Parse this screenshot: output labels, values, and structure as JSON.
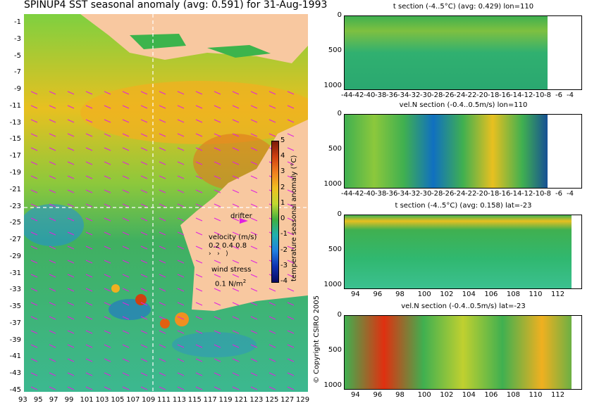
{
  "map": {
    "title": "SPINUP4 SST seasonal anomaly (avg: 0.591) for 31-Aug-1993",
    "lat_labels": [
      "-1",
      "-3",
      "-5",
      "-7",
      "-9",
      "-11",
      "-13",
      "-15",
      "-17",
      "-19",
      "-21",
      "-23",
      "-25",
      "-27",
      "-29",
      "-31",
      "-33",
      "-35",
      "-37",
      "-39",
      "-41",
      "-43",
      "-45"
    ],
    "lon_labels": [
      "93",
      "95",
      "97",
      "99",
      "101",
      "103",
      "105",
      "107",
      "109",
      "111",
      "113",
      "115",
      "117",
      "119",
      "121",
      "123",
      "125",
      "127",
      "129"
    ],
    "drifter_label": "drifter",
    "velocity_label": "velocity (m/s)",
    "velocity_scale": "0.2 0.4 0.8",
    "wind_label": "wind stress",
    "wind_scale": "0.1 N/m",
    "wind_unit_sup": "2",
    "colorbar_label": "temperature seasonal anomaly (°C)",
    "colorbar_ticks": [
      "5",
      "4",
      "3",
      "2",
      "1",
      "0",
      "-1",
      "-2",
      "-3",
      "-4"
    ],
    "copyright": "© Copyright CSIRO 2005",
    "colors": {
      "land": "#f8c8a0",
      "ocean_mid": "#3cb44c",
      "warm": "#f0a020",
      "cool": "#2080d0",
      "arrow": "#e020e0"
    }
  },
  "sections": [
    {
      "title": "t section (-4..5°C) (avg: 0.429) lon=110",
      "depth_ticks": [
        "0",
        "500",
        "1000"
      ],
      "x_ticks": [
        "-44",
        "-42",
        "-40",
        "-38",
        "-36",
        "-34",
        "-32",
        "-30",
        "-28",
        "-26",
        "-24",
        "-22",
        "-20",
        "-18",
        "-16",
        "-14",
        "-12",
        "-10",
        "-8",
        "-6",
        "-4"
      ]
    },
    {
      "title": "vel.N section (-0.4..0.5m/s) lon=110",
      "depth_ticks": [
        "0",
        "500",
        "1000"
      ],
      "x_ticks": [
        "-44",
        "-42",
        "-40",
        "-38",
        "-36",
        "-34",
        "-32",
        "-30",
        "-28",
        "-26",
        "-24",
        "-22",
        "-20",
        "-18",
        "-16",
        "-14",
        "-12",
        "-10",
        "-8",
        "-6",
        "-4"
      ]
    },
    {
      "title": "t section (-4..5°C) (avg: 0.158) lat=-23",
      "depth_ticks": [
        "0",
        "500",
        "1000"
      ],
      "x_ticks": [
        "94",
        "96",
        "98",
        "100",
        "102",
        "104",
        "106",
        "108",
        "110",
        "112"
      ]
    },
    {
      "title": "vel.N section (-0.4..0.5m/s) lat=-23",
      "depth_ticks": [
        "0",
        "500",
        "1000"
      ],
      "x_ticks": [
        "94",
        "96",
        "98",
        "100",
        "102",
        "104",
        "106",
        "108",
        "110",
        "112"
      ]
    }
  ]
}
